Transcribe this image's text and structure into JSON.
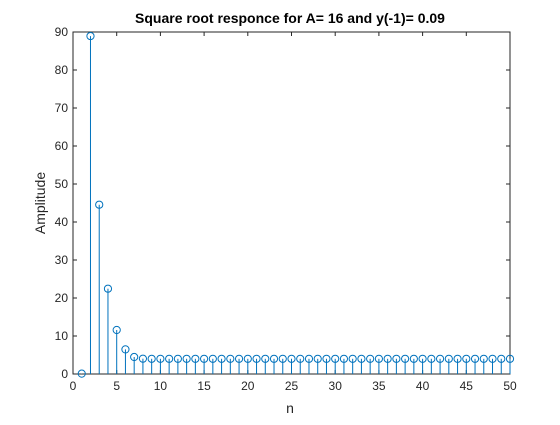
{
  "chart_data": {
    "type": "stem",
    "title": "Square root responce for A= 16 and y(-1)= 0.09",
    "xlabel": "n",
    "ylabel": "Amplitude",
    "xlim": [
      0,
      50
    ],
    "ylim": [
      0,
      90
    ],
    "xticks": [
      0,
      5,
      10,
      15,
      20,
      25,
      30,
      35,
      40,
      45,
      50
    ],
    "yticks": [
      0,
      10,
      20,
      30,
      40,
      50,
      60,
      70,
      80,
      90
    ],
    "grid": false,
    "legend": "none",
    "series_color": "#0072BD",
    "x": [
      1,
      2,
      3,
      4,
      5,
      6,
      7,
      8,
      9,
      10,
      11,
      12,
      13,
      14,
      15,
      16,
      17,
      18,
      19,
      20,
      21,
      22,
      23,
      24,
      25,
      26,
      27,
      28,
      29,
      30,
      31,
      32,
      33,
      34,
      35,
      36,
      37,
      38,
      39,
      40,
      41,
      42,
      43,
      44,
      45,
      46,
      47,
      48,
      49,
      50
    ],
    "y": [
      0.09,
      88.93,
      44.55,
      22.45,
      11.58,
      6.48,
      4.47,
      4.03,
      4.0,
      4.0,
      4.0,
      4.0,
      4.0,
      4.0,
      4.0,
      4.0,
      4.0,
      4.0,
      4.0,
      4.0,
      4.0,
      4.0,
      4.0,
      4.0,
      4.0,
      4.0,
      4.0,
      4.0,
      4.0,
      4.0,
      4.0,
      4.0,
      4.0,
      4.0,
      4.0,
      4.0,
      4.0,
      4.0,
      4.0,
      4.0,
      4.0,
      4.0,
      4.0,
      4.0,
      4.0,
      4.0,
      4.0,
      4.0,
      4.0,
      4.0
    ]
  }
}
